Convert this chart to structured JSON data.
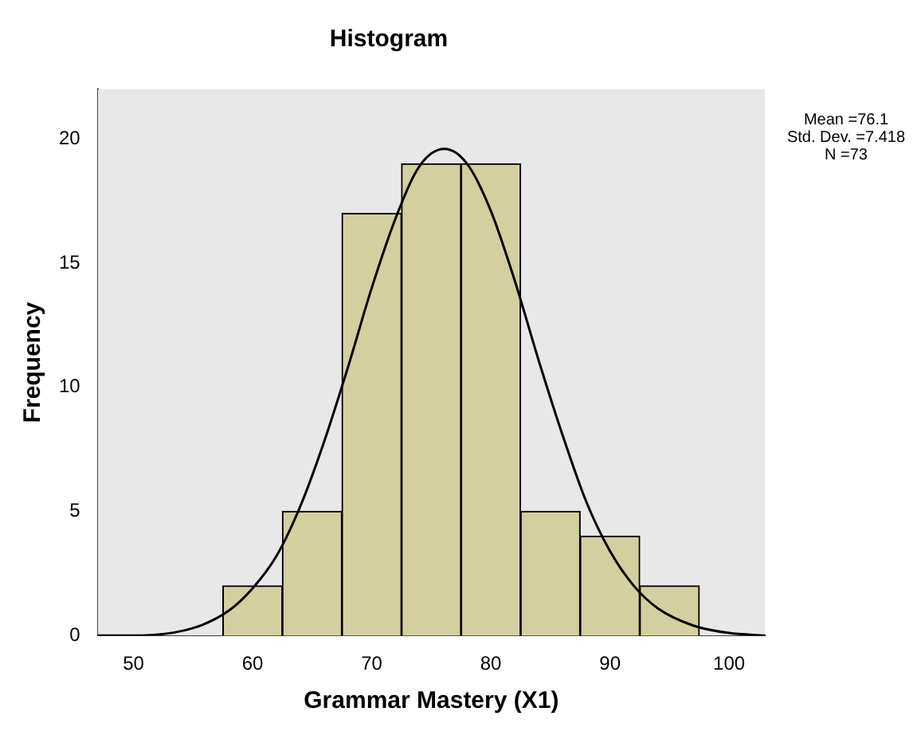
{
  "chart_data": {
    "type": "histogram",
    "title": "Histogram",
    "xlabel": "Grammar Mastery (X1)",
    "ylabel": "Frequency",
    "bins": [
      57.5,
      62.5,
      67.5,
      72.5,
      77.5,
      82.5,
      87.5,
      92.5,
      97.5
    ],
    "values": [
      2,
      5,
      17,
      19,
      19,
      5,
      4,
      2
    ],
    "color": "#d3cf9f",
    "series": [
      {
        "type": "line",
        "color": "#000000",
        "x": [
          47,
          50,
          55,
          58,
          60,
          62,
          64,
          66,
          68,
          70,
          72,
          74,
          76.1,
          78,
          80,
          82,
          84,
          86,
          88,
          90,
          92,
          94,
          97,
          100,
          103
        ],
        "values": [
          0.0,
          0.0,
          0.3,
          1.0,
          1.9,
          3.2,
          5.2,
          7.8,
          10.8,
          14.0,
          16.8,
          18.9,
          19.6,
          19.0,
          17.1,
          14.3,
          11.1,
          8.1,
          5.4,
          3.4,
          2.0,
          1.1,
          0.4,
          0.1,
          0.0
        ]
      }
    ],
    "xlim": [
      47,
      103
    ],
    "xticks": [
      50,
      60,
      70,
      80,
      90,
      100
    ],
    "ylim": [
      0,
      22
    ],
    "yticks": [
      0,
      5,
      10,
      15,
      20
    ],
    "grid": false,
    "legend": false,
    "marker": "none",
    "annotations": [
      "Mean =76.1",
      "Std. Dev. =7.418",
      "N =73"
    ]
  }
}
